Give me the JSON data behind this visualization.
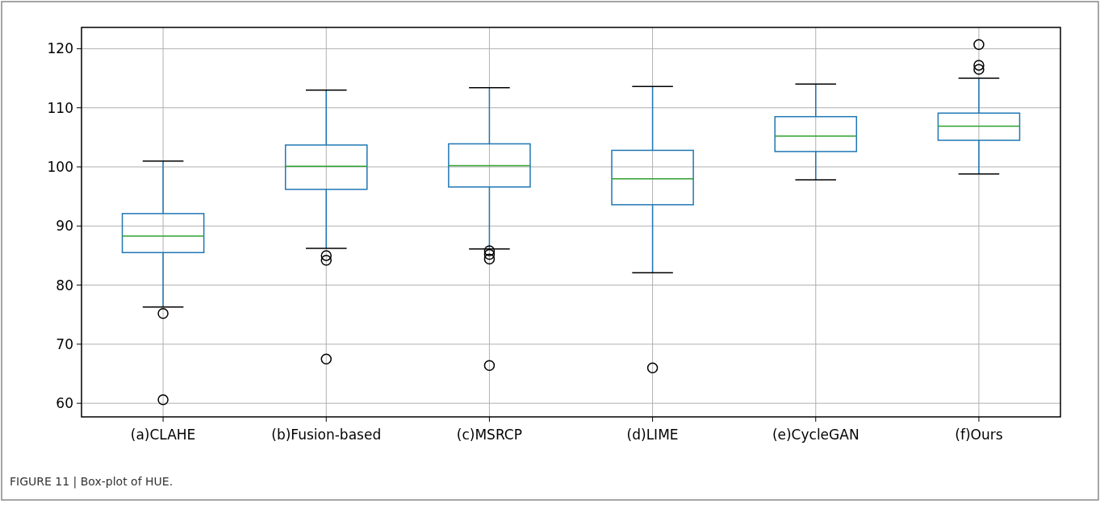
{
  "chart_data": {
    "type": "box",
    "categories": [
      "(a)CLAHE",
      "(b)Fusion-based",
      "(c)MSRCP",
      "(d)LIME",
      "(e)CycleGAN",
      "(f)Ours"
    ],
    "boxes": [
      {
        "low": 76.3,
        "q1": 85.5,
        "median": 88.3,
        "q3": 92.1,
        "high": 101,
        "outliers": [
          75.2,
          60.6
        ]
      },
      {
        "low": 86.2,
        "q1": 96.2,
        "median": 100.1,
        "q3": 103.7,
        "high": 113,
        "outliers": [
          85,
          84.2,
          67.5
        ]
      },
      {
        "low": 86.1,
        "q1": 96.6,
        "median": 100.2,
        "q3": 103.9,
        "high": 113.4,
        "outliers": [
          85.8,
          85.2,
          84.4,
          66.4
        ]
      },
      {
        "low": 82.1,
        "q1": 93.6,
        "median": 98,
        "q3": 102.8,
        "high": 113.6,
        "outliers": [
          66
        ]
      },
      {
        "low": 97.8,
        "q1": 102.6,
        "median": 105.2,
        "q3": 108.5,
        "high": 114
      },
      {
        "low": 98.8,
        "q1": 104.5,
        "median": 106.9,
        "q3": 109.1,
        "high": 115,
        "outliers": [
          120.7,
          117.2,
          116.5
        ]
      }
    ],
    "color": "#1f77b4",
    "ylim": [
      57.7,
      123.6
    ],
    "yticks": [
      60,
      70,
      80,
      90,
      100,
      110,
      120
    ],
    "grid": true,
    "annotations": [
      "FIGURE 11 | Box-plot of HUE."
    ]
  }
}
